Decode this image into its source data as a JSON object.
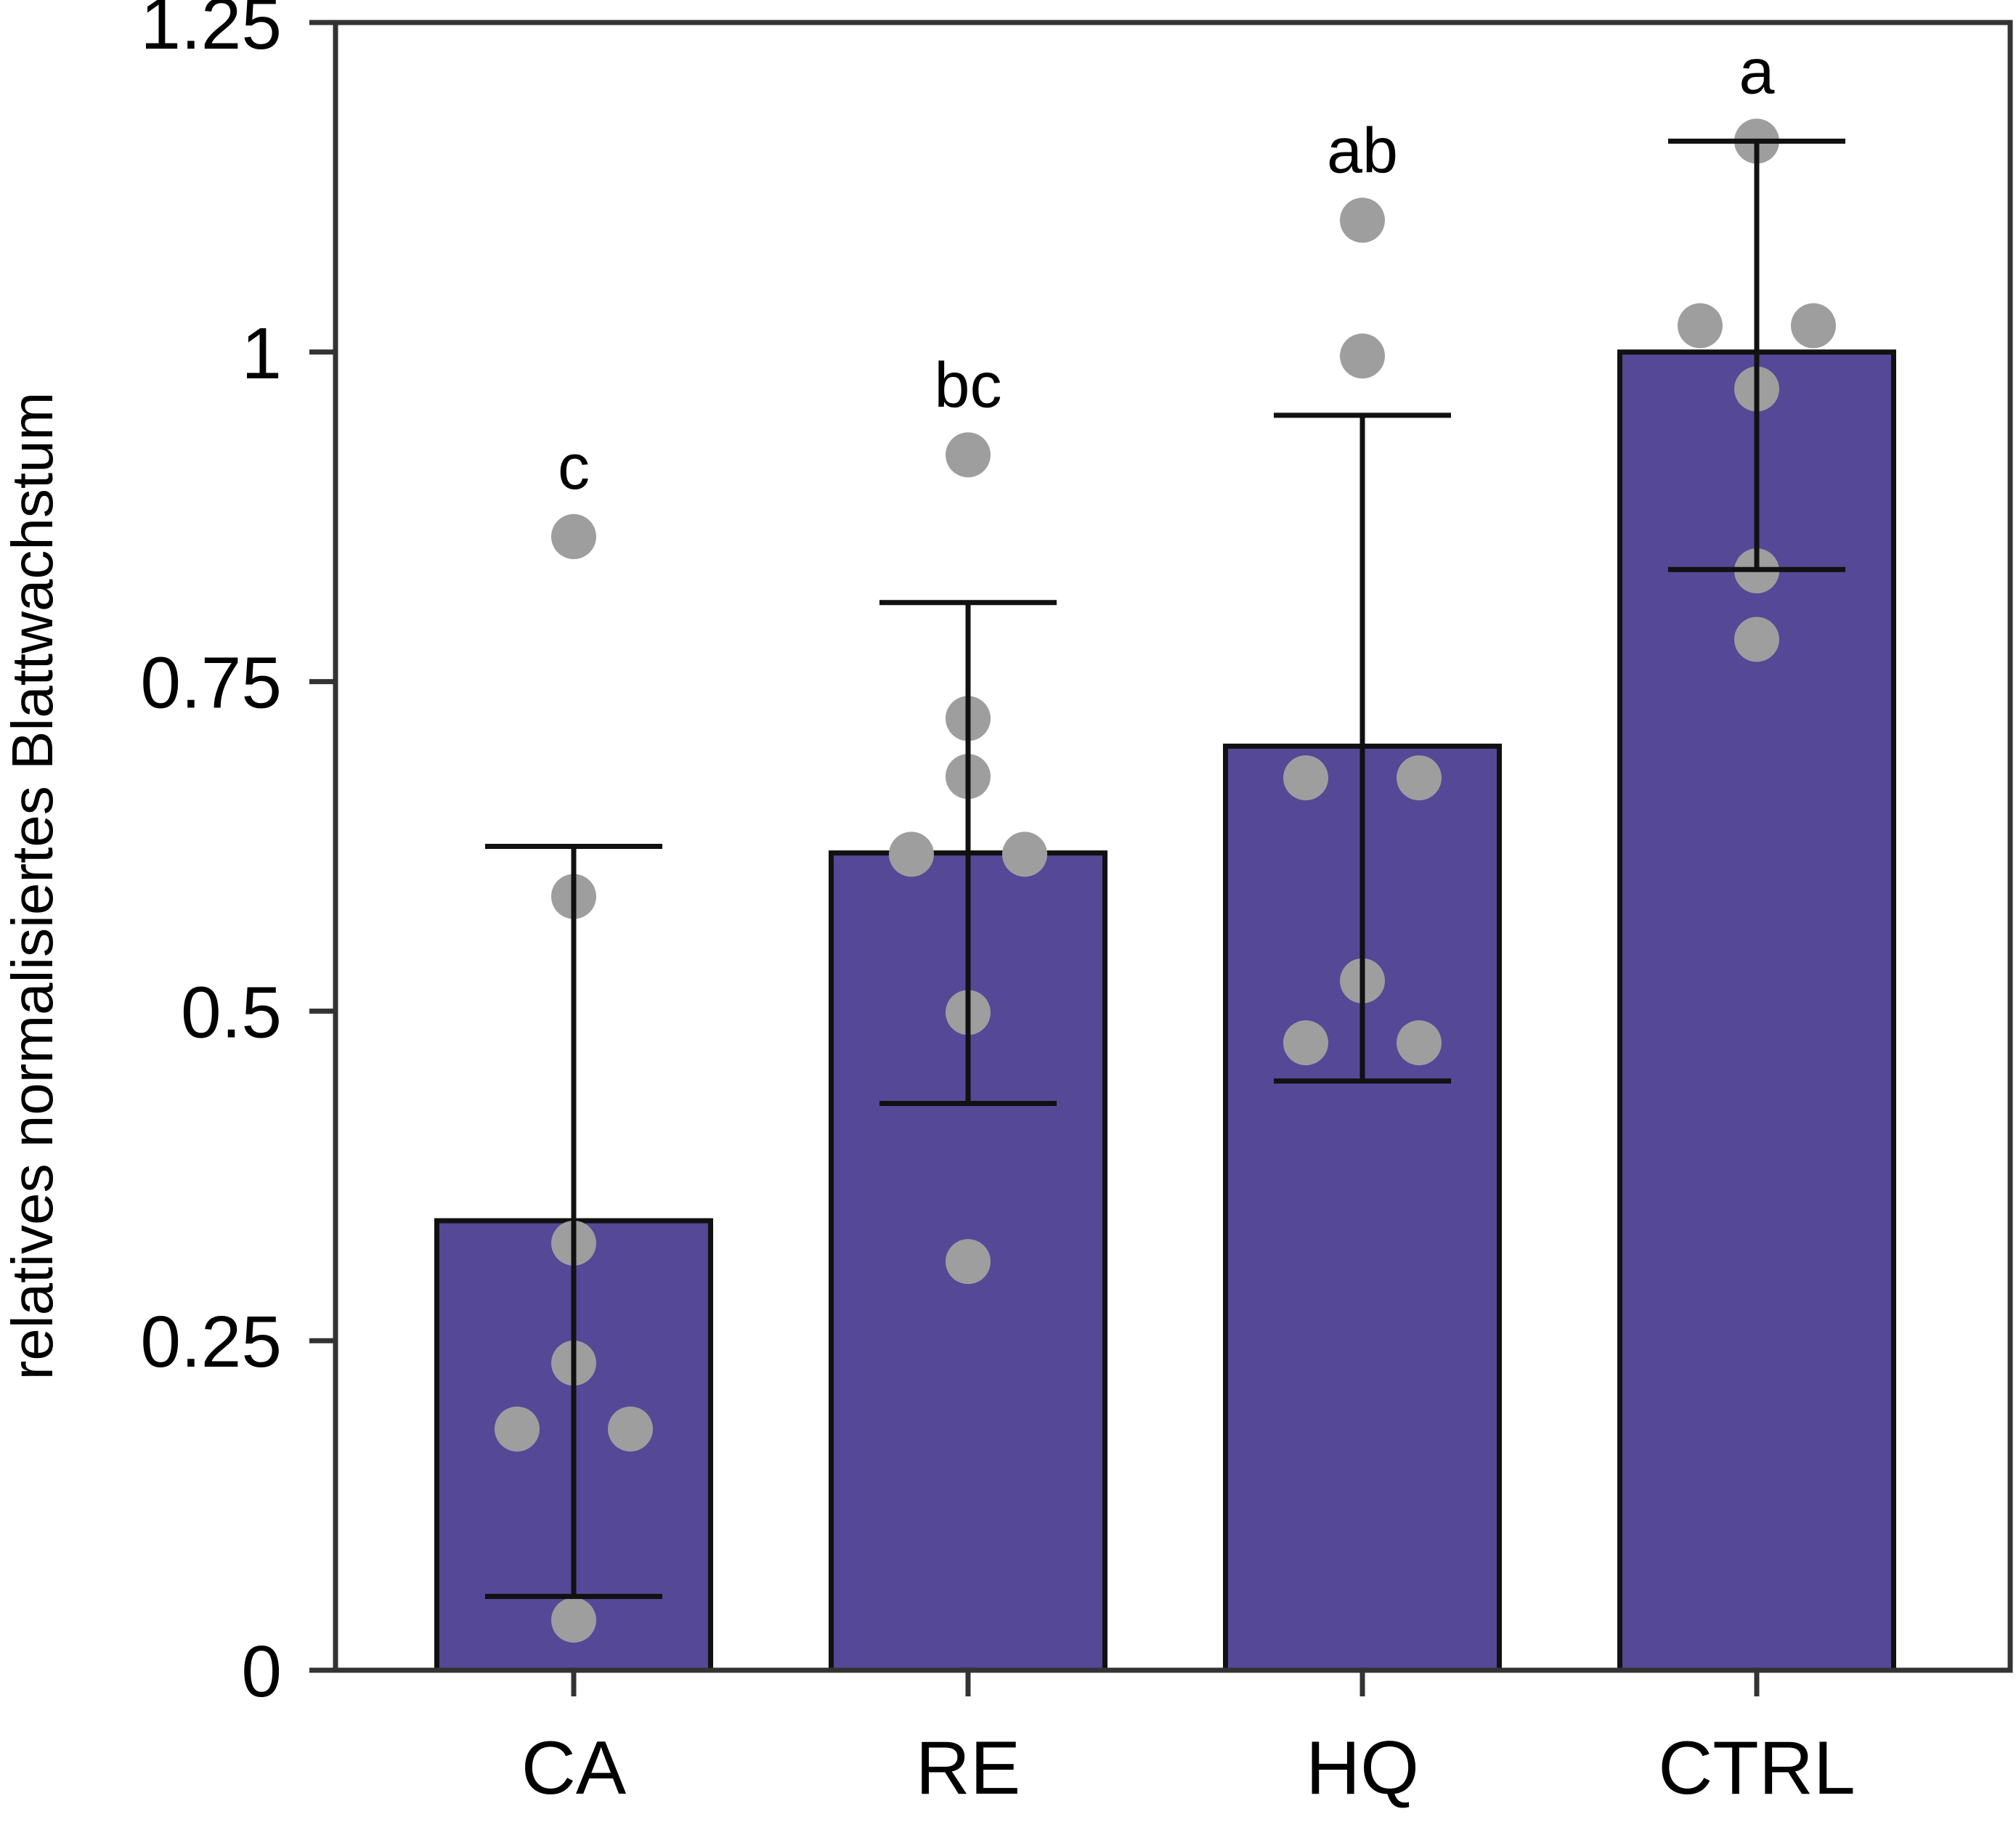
{
  "chart_data": {
    "type": "bar",
    "ylabel": "relatives normalisiertes Blattwachstum",
    "xlabel": "",
    "title": "",
    "ylim": [
      0,
      1.25
    ],
    "yticks": [
      {
        "value": 0,
        "label": "0"
      },
      {
        "value": 0.25,
        "label": "0.25"
      },
      {
        "value": 0.5,
        "label": "0.5"
      },
      {
        "value": 0.75,
        "label": "0.75"
      },
      {
        "value": 1,
        "label": "1"
      },
      {
        "value": 1.25,
        "label": "1.25"
      }
    ],
    "categories": [
      "CA",
      "RE",
      "HQ",
      "CTRL"
    ],
    "values": [
      0.341,
      0.62,
      0.701,
      1.0
    ],
    "error_low": [
      0.056,
      0.43,
      0.447,
      0.835
    ],
    "error_high": [
      0.625,
      0.81,
      0.952,
      1.16
    ],
    "letters": [
      "c",
      "bc",
      "ab",
      "a"
    ],
    "points": [
      [
        0.86,
        0.587,
        0.324,
        0.233,
        0.183,
        0.183,
        0.038
      ],
      [
        0.922,
        0.722,
        0.678,
        0.619,
        0.619,
        0.499,
        0.31
      ],
      [
        1.1,
        0.997,
        0.677,
        0.677,
        0.523,
        0.476,
        0.476
      ],
      [
        1.16,
        1.02,
        1.02,
        0.972,
        0.834,
        0.782
      ]
    ],
    "grid": false,
    "legend": "none",
    "colors": {
      "bar_fill": "#554896",
      "bar_stroke": "#111111",
      "points": "#9e9e9e",
      "axis": "#333333",
      "error_bar": "#111111"
    }
  }
}
